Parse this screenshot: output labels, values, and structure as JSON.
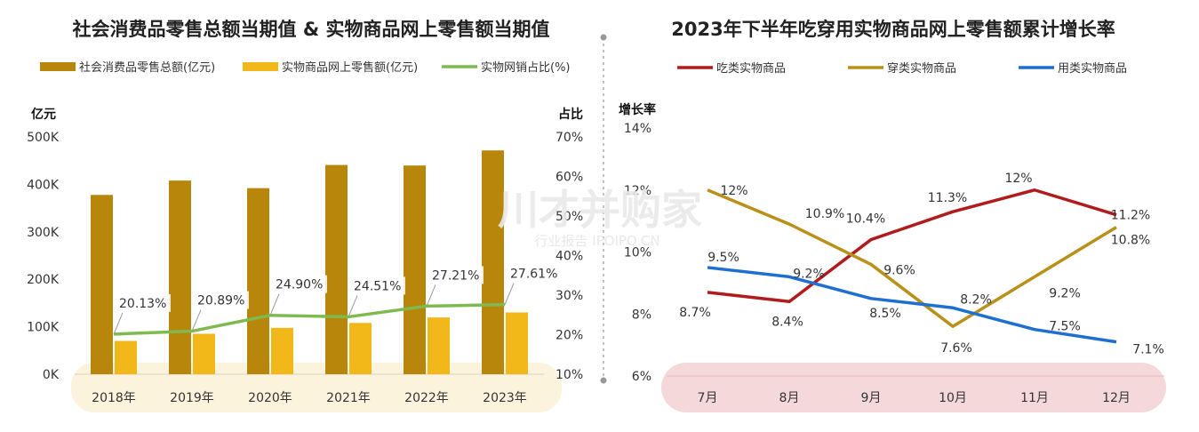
{
  "watermark": {
    "main": "川才并购家",
    "sub": "行业报告 IPOIPO.CN"
  },
  "chart_data": [
    {
      "type": "bar",
      "title": "社会消费品零售总额当期值 & 实物商品网上零售额当期值",
      "categories": [
        "2018年",
        "2019年",
        "2020年",
        "2021年",
        "2022年",
        "2023年"
      ],
      "ylabel": "亿元",
      "y2label": "占比",
      "ylim": [
        0,
        500000
      ],
      "y2lim": [
        10,
        70
      ],
      "yticks": [
        "0K",
        "100K",
        "200K",
        "300K",
        "400K",
        "500K"
      ],
      "y2ticks": [
        "10%",
        "20%",
        "30%",
        "40%",
        "50%",
        "60%",
        "70%"
      ],
      "legend_position": "top",
      "series": [
        {
          "name": "社会消费品零售总额(亿元)",
          "kind": "bar",
          "color": "#b8860b",
          "values": [
            377783,
            408017,
            391981,
            440823,
            439733,
            471495
          ]
        },
        {
          "name": "实物商品网上零售额(亿元)",
          "kind": "bar",
          "color": "#f2b81a",
          "values": [
            70198,
            85239,
            97590,
            108042,
            119642,
            130174
          ]
        },
        {
          "name": "实物网销占比(%)",
          "kind": "line",
          "axis": "y2",
          "color": "#7fba4f",
          "values": [
            20.13,
            20.89,
            24.9,
            24.51,
            27.21,
            27.61
          ],
          "labels": [
            "20.13%",
            "20.89%",
            "24.90%",
            "24.51%",
            "27.21%",
            "27.61%"
          ]
        }
      ]
    },
    {
      "type": "line",
      "title": "2023年下半年吃穿用实物商品网上零售额累计增长率",
      "categories": [
        "7月",
        "8月",
        "9月",
        "10月",
        "11月",
        "12月"
      ],
      "ylabel": "增长率",
      "ylim": [
        6,
        14
      ],
      "yticks": [
        "6%",
        "8%",
        "10%",
        "12%",
        "14%"
      ],
      "legend_position": "top",
      "series": [
        {
          "name": "吃类实物商品",
          "color": "#b01c1c",
          "values": [
            8.7,
            8.4,
            10.4,
            11.3,
            12,
            11.2
          ],
          "labels": [
            "8.7%",
            "8.4%",
            "10.4%",
            "11.3%",
            "12%",
            "11.2%"
          ]
        },
        {
          "name": "穿类实物商品",
          "color": "#b8901a",
          "values": [
            12,
            10.9,
            9.6,
            7.6,
            9.2,
            10.8
          ],
          "labels": [
            "12%",
            "10.9%",
            "9.6%",
            "7.6%",
            "9.2%",
            "10.8%"
          ]
        },
        {
          "name": "用类实物商品",
          "color": "#1f6fd1",
          "values": [
            9.5,
            9.2,
            8.5,
            8.2,
            7.5,
            7.1
          ],
          "labels": [
            "9.5%",
            "9.2%",
            "8.5%",
            "8.2%",
            "7.5%",
            "7.1%"
          ]
        }
      ]
    }
  ]
}
